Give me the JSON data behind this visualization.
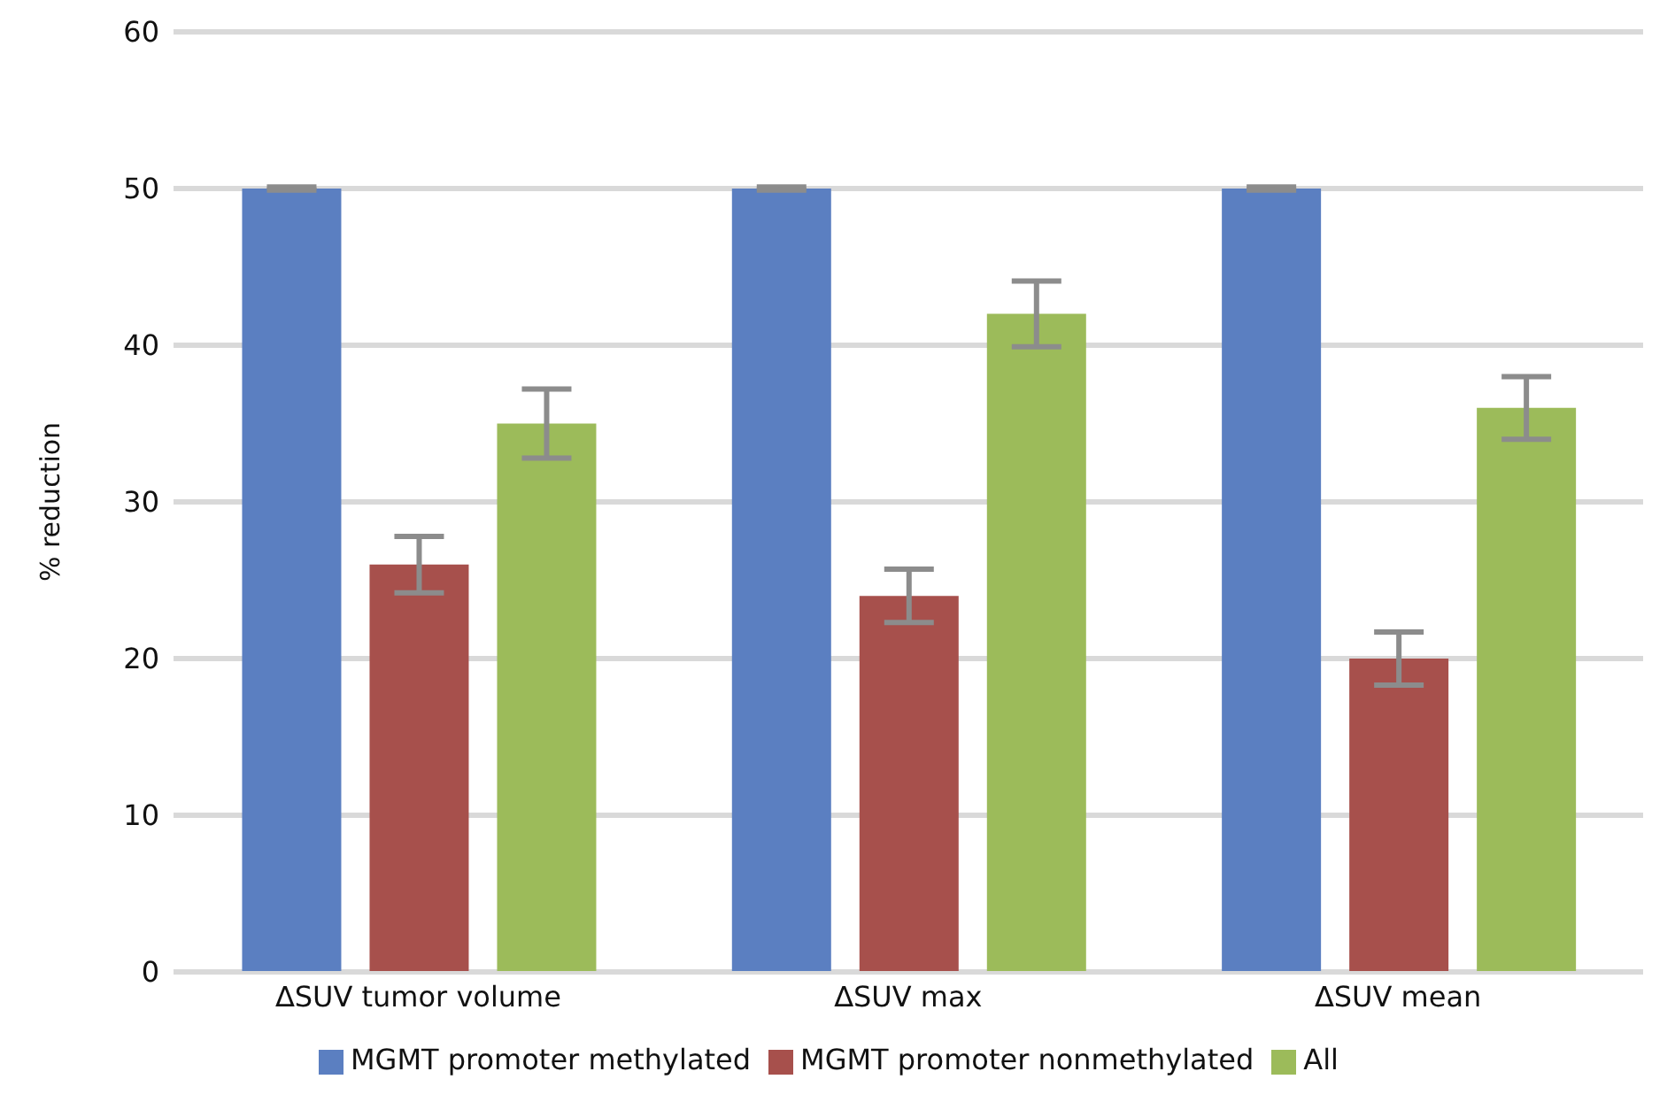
{
  "chart_data": {
    "type": "bar",
    "ylabel": "% reduction",
    "categories": [
      "∆SUV tumor volume",
      "∆SUV max",
      "∆SUV mean"
    ],
    "series": [
      {
        "name": "MGMT promoter methylated",
        "color": "#5b7fc1",
        "values": [
          50,
          50,
          50
        ],
        "errors": [
          0.1,
          0.1,
          0.1
        ]
      },
      {
        "name": "MGMT promoter nonmethylated",
        "color": "#a7504c",
        "values": [
          26,
          24,
          20
        ],
        "errors": [
          1.8,
          1.7,
          1.7
        ]
      },
      {
        "name": "All",
        "color": "#9cbb5a",
        "values": [
          35,
          42,
          36
        ],
        "errors": [
          2.2,
          2.1,
          2
        ]
      }
    ],
    "ylim": [
      0,
      60
    ],
    "yticks": [
      0,
      10,
      20,
      30,
      40,
      50,
      60
    ],
    "grid": "y",
    "legend": "bottom"
  }
}
